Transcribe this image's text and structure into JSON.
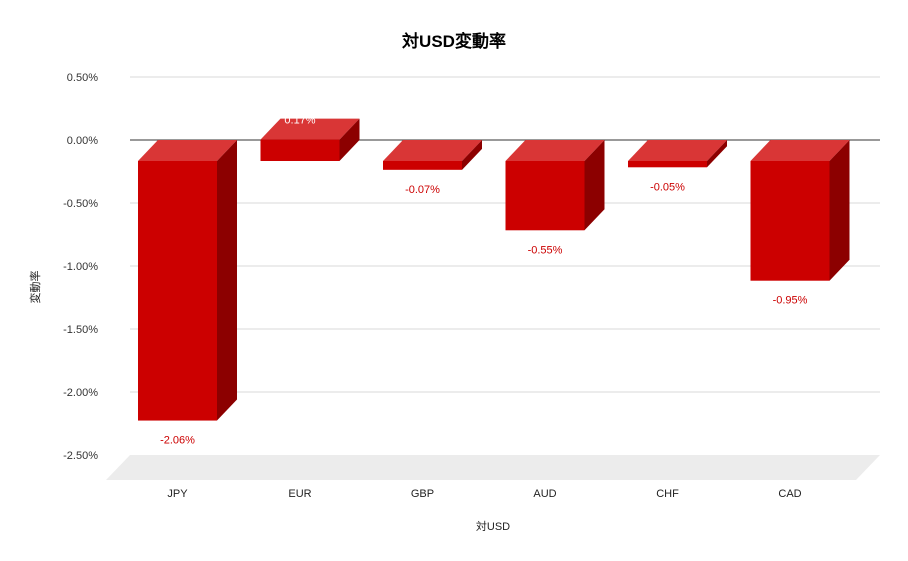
{
  "chart_data": {
    "type": "bar",
    "title": "対USD変動率",
    "xlabel": "対USD",
    "ylabel": "変動率",
    "categories": [
      "JPY",
      "EUR",
      "GBP",
      "AUD",
      "CHF",
      "CAD"
    ],
    "values": [
      -2.06,
      0.17,
      -0.07,
      -0.55,
      -0.05,
      -0.95
    ],
    "data_labels": [
      "-2.06%",
      "0.17%",
      "-0.07%",
      "-0.55%",
      "-0.05%",
      "-0.95%"
    ],
    "ylim": [
      -2.5,
      0.5
    ],
    "yticks": [
      0.5,
      0.0,
      -0.5,
      -1.0,
      -1.5,
      -2.0,
      -2.5
    ],
    "ytick_labels": [
      "0.50%",
      "0.00%",
      "-0.50%",
      "-1.00%",
      "-1.50%",
      "-2.00%",
      "-2.50%"
    ],
    "grid": true,
    "legend": "none",
    "three_d": true,
    "colors": {
      "front": "#cc0000",
      "top": "#d93636",
      "side": "#8c0000",
      "label_negative": "#cc0000",
      "label_positive": "#ffffff",
      "floor": "#ececec",
      "grid": "#d9d9d9",
      "zero_line": "#333333"
    }
  }
}
